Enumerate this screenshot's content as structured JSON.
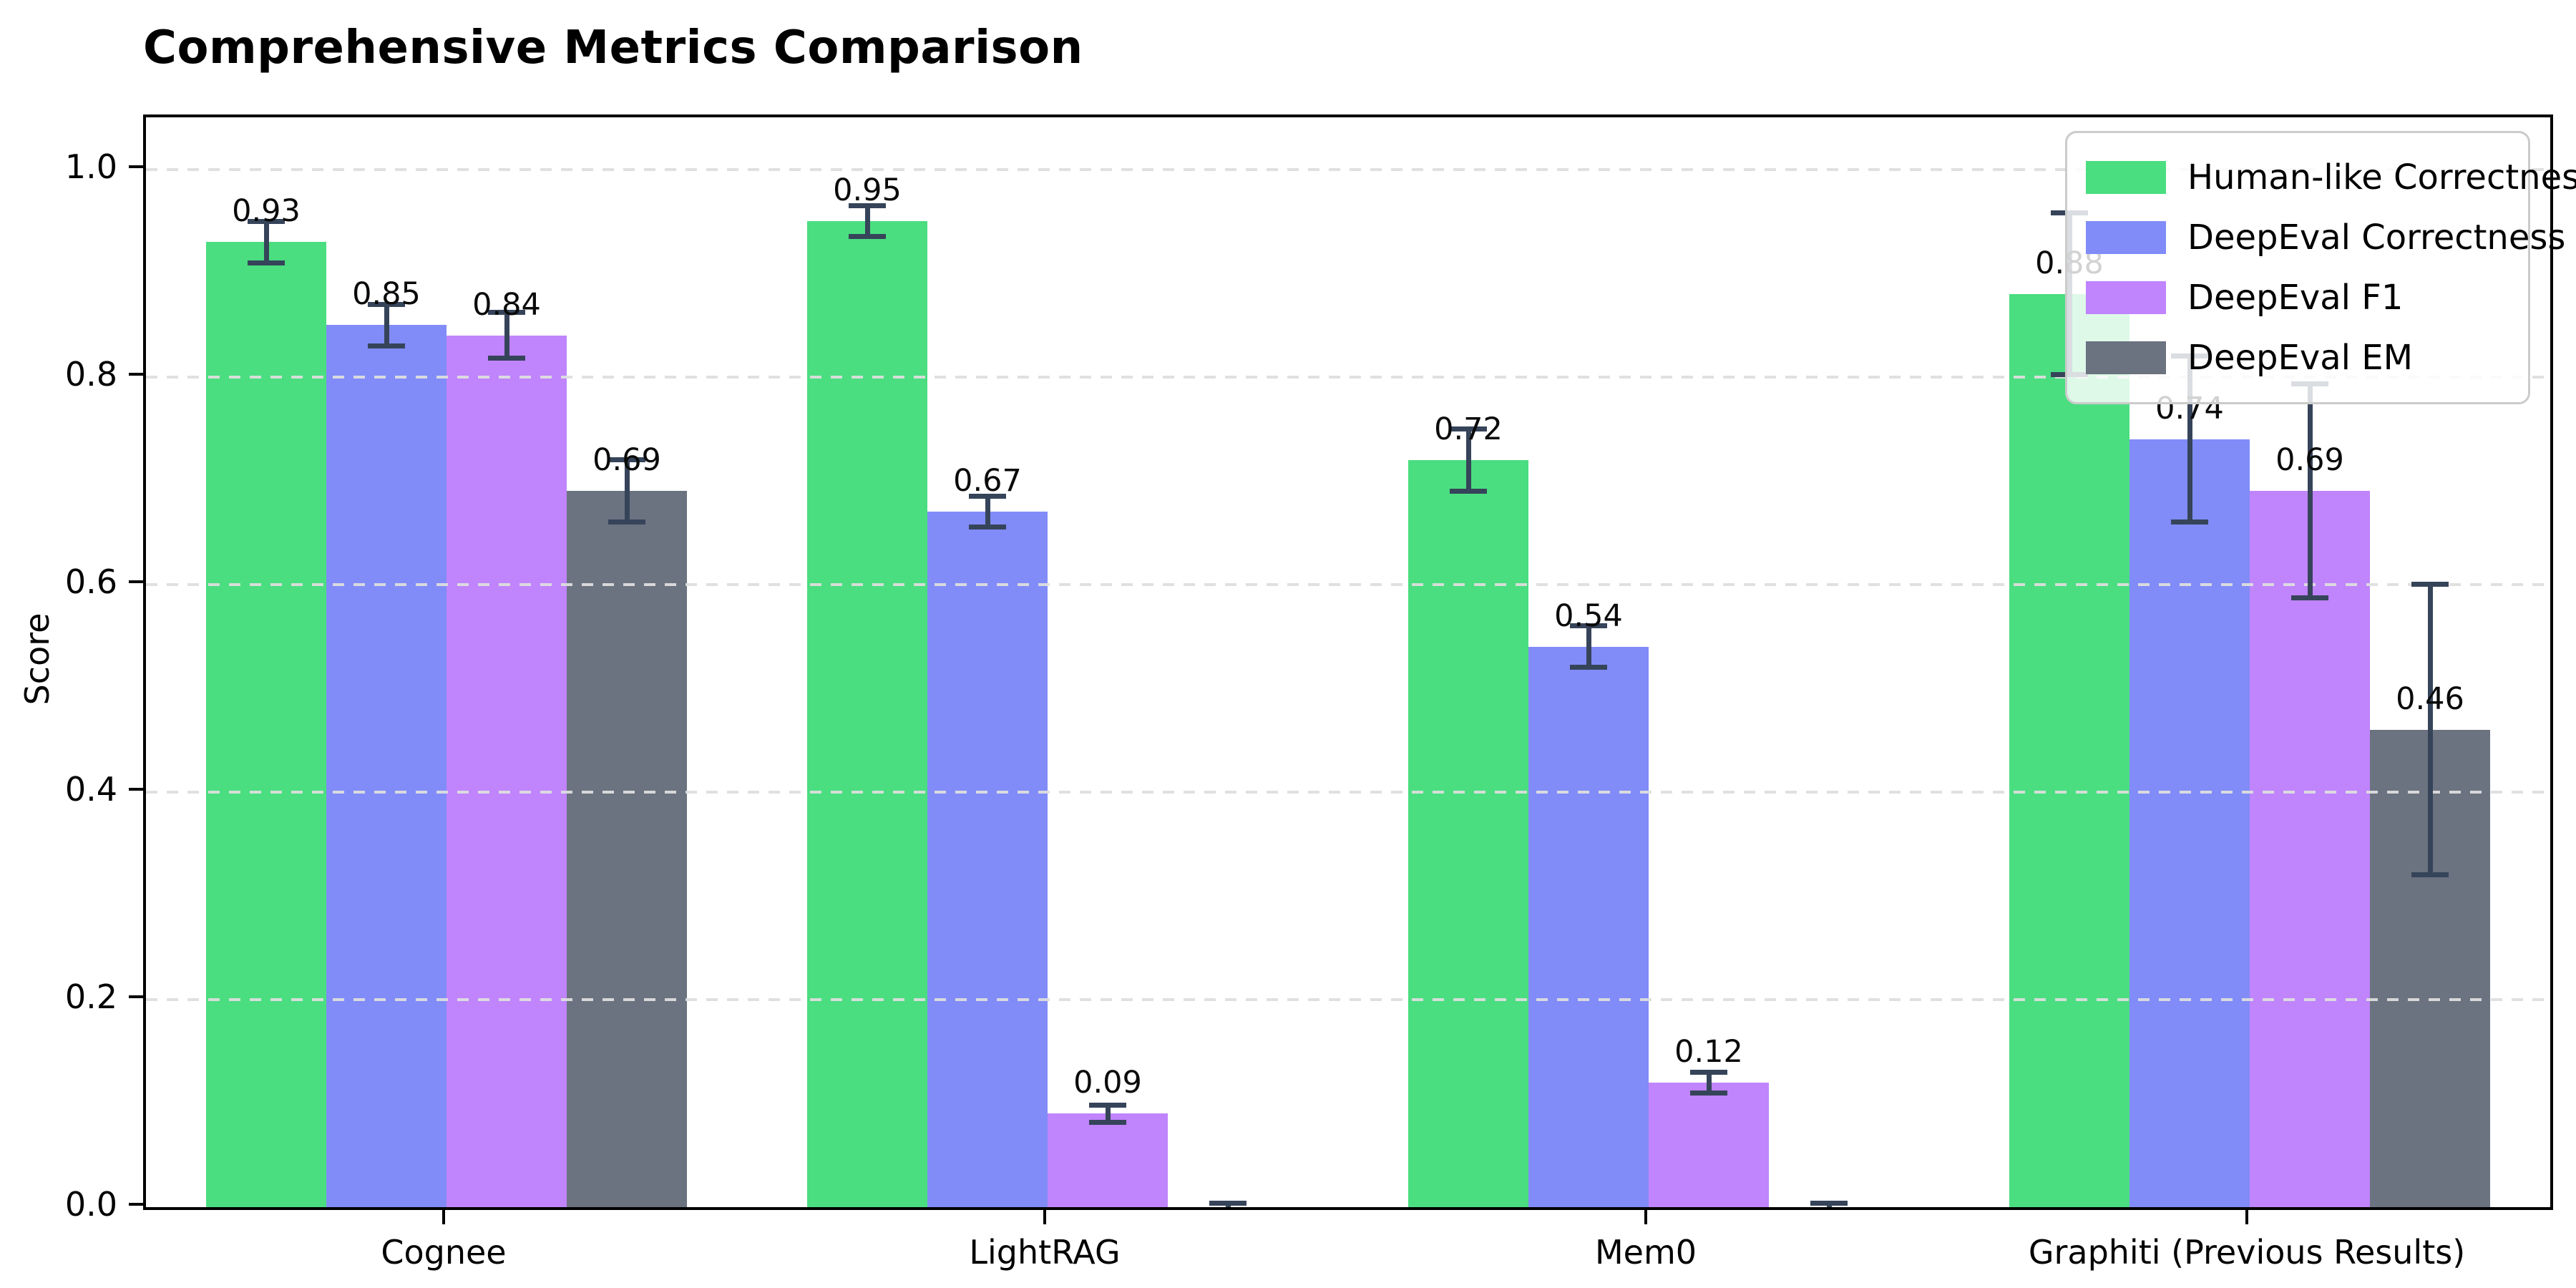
{
  "figure": {
    "background": "#ffffff"
  },
  "chart_data": {
    "type": "bar",
    "title": "Comprehensive Metrics Comparison",
    "xlabel": "",
    "ylabel": "Score",
    "categories": [
      "Cognee",
      "LightRAG",
      "Mem0",
      "Graphiti (Previous Results)"
    ],
    "series": [
      {
        "name": "Human-like Correctness",
        "color": "#4ade80",
        "values": [
          0.93,
          0.95,
          0.72,
          0.88
        ],
        "errors": [
          0.02,
          0.015,
          0.03,
          0.078
        ],
        "labels": [
          "0.93",
          "0.95",
          "0.72",
          "0.88"
        ]
      },
      {
        "name": "DeepEval Correctness",
        "color": "#818cf8",
        "values": [
          0.85,
          0.67,
          0.54,
          0.74
        ],
        "errors": [
          0.02,
          0.015,
          0.02,
          0.08
        ],
        "labels": [
          "0.85",
          "0.67",
          "0.54",
          "0.74"
        ]
      },
      {
        "name": "DeepEval F1",
        "color": "#c084fc",
        "values": [
          0.84,
          0.09,
          0.12,
          0.69
        ],
        "errors": [
          0.022,
          0.008,
          0.01,
          0.103
        ],
        "labels": [
          "0.84",
          "0.09",
          "0.12",
          "0.69"
        ]
      },
      {
        "name": "DeepEval EM",
        "color": "#6b7280",
        "values": [
          0.69,
          0.0,
          0.0,
          0.46
        ],
        "errors": [
          0.03,
          0.004,
          0.004,
          0.14
        ],
        "labels": [
          "0.69",
          "",
          "",
          "0.46"
        ]
      }
    ],
    "ylim": [
      0.0,
      1.05
    ],
    "yticks": [
      0.0,
      0.2,
      0.4,
      0.6,
      0.8,
      1.0
    ],
    "ytick_labels": [
      "0.0",
      "0.2",
      "0.4",
      "0.6",
      "0.8",
      "1.0"
    ],
    "grid": "horizontal dashed",
    "gridline_color": "#dedede",
    "legend_position": "upper right",
    "errorbar_color": "#36445a",
    "bar_group_offsets": [
      -0.3,
      -0.1,
      0.1,
      0.3
    ],
    "bar_width_fraction": 0.2
  }
}
